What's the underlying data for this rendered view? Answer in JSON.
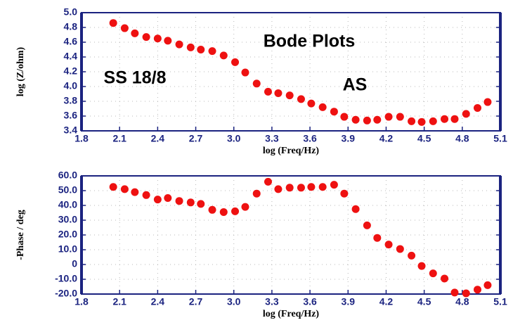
{
  "chart_data": [
    {
      "type": "scatter",
      "ylabel": "log (Z/ohm)",
      "xlabel": "log (Freq/Hz)",
      "annotations": [
        "Bode Plots",
        "SS 18/8",
        "AS"
      ],
      "x": [
        2.05,
        2.14,
        2.22,
        2.31,
        2.4,
        2.48,
        2.57,
        2.66,
        2.74,
        2.83,
        2.92,
        3.01,
        3.09,
        3.18,
        3.27,
        3.35,
        3.44,
        3.53,
        3.61,
        3.7,
        3.79,
        3.87,
        3.96,
        4.05,
        4.13,
        4.22,
        4.31,
        4.4,
        4.48,
        4.57,
        4.66,
        4.74,
        4.83,
        4.92,
        5.0
      ],
      "series": [
        {
          "color": "#ee1111",
          "values": [
            4.86,
            4.79,
            4.72,
            4.67,
            4.65,
            4.62,
            4.57,
            4.53,
            4.5,
            4.48,
            4.42,
            4.33,
            4.19,
            4.04,
            3.93,
            3.91,
            3.88,
            3.83,
            3.77,
            3.72,
            3.66,
            3.59,
            3.55,
            3.54,
            3.55,
            3.59,
            3.59,
            3.53,
            3.52,
            3.53,
            3.56,
            3.56,
            3.63,
            3.71,
            3.79
          ]
        }
      ],
      "xlim": [
        1.8,
        5.1
      ],
      "xticks": [
        1.8,
        2.1,
        2.4,
        2.7,
        {
          "value": 3.0,
          "label": "3.0"
        },
        3.3,
        3.6,
        3.9,
        4.2,
        4.5,
        4.8,
        5.1
      ],
      "ylim": [
        3.4,
        5.0
      ],
      "yticks": [
        3.4,
        3.6,
        3.8,
        {
          "value": 4.0,
          "label": "4.0"
        },
        4.2,
        4.4,
        4.6,
        4.8,
        {
          "value": 5.0,
          "label": "5.0"
        }
      ],
      "grid": true
    },
    {
      "type": "scatter",
      "ylabel": "-Phase / deg",
      "xlabel": "log (Freq/Hz)",
      "x": [
        2.05,
        2.14,
        2.22,
        2.31,
        2.4,
        2.48,
        2.57,
        2.66,
        2.74,
        2.83,
        2.92,
        3.01,
        3.09,
        3.18,
        3.27,
        3.35,
        3.44,
        3.53,
        3.61,
        3.7,
        3.79,
        3.87,
        3.96,
        4.05,
        4.13,
        4.22,
        4.31,
        4.4,
        4.48,
        4.57,
        4.66,
        4.74,
        4.83,
        4.92,
        5.0
      ],
      "series": [
        {
          "color": "#ee1111",
          "values": [
            52.5,
            51,
            49,
            47,
            44,
            45,
            43,
            42,
            41,
            37,
            35.5,
            36,
            39,
            48,
            56,
            51,
            52,
            52,
            52.5,
            52.5,
            54,
            48,
            37.5,
            26.5,
            18,
            13.5,
            10.5,
            6,
            -1,
            -6,
            -9.5,
            -19,
            -19.5,
            -17,
            -14
          ]
        }
      ],
      "xlim": [
        1.8,
        5.1
      ],
      "xticks": [
        1.8,
        2.1,
        2.4,
        2.7,
        {
          "value": 3.0,
          "label": "3.0"
        },
        3.3,
        3.6,
        3.9,
        4.2,
        4.5,
        4.8,
        5.1
      ],
      "ylim": [
        -20,
        60
      ],
      "yticks": [
        {
          "value": -20,
          "label": "-20.0"
        },
        {
          "value": -10,
          "label": "-10.0"
        },
        0,
        {
          "value": 10,
          "label": "10.0"
        },
        {
          "value": 20,
          "label": "20.0"
        },
        {
          "value": 30,
          "label": "30.0"
        },
        {
          "value": 40,
          "label": "40.0"
        },
        {
          "value": 50,
          "label": "50.0"
        },
        {
          "value": 60,
          "label": "60.0"
        }
      ],
      "grid": true
    }
  ]
}
